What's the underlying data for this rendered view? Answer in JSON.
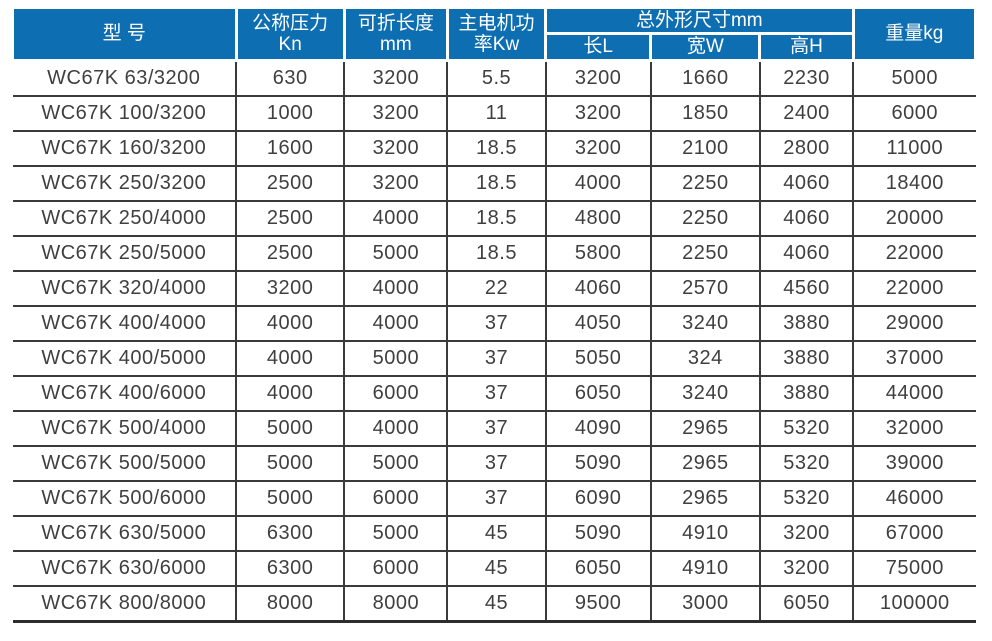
{
  "table": {
    "header": {
      "model": "型 号",
      "pressure": {
        "line1": "公称压力",
        "line2": "Kn"
      },
      "fold_length": {
        "line1": "可折长度",
        "line2": "mm"
      },
      "motor_power": {
        "line1": "主电机功",
        "line2": "率Kw"
      },
      "dimensions_group": "总外形尺寸mm",
      "dim_length": "长L",
      "dim_width": "宽W",
      "dim_height": "高H",
      "weight": "重量kg"
    },
    "rows": [
      [
        "WC67K 63/3200",
        "630",
        "3200",
        "5.5",
        "3200",
        "1660",
        "2230",
        "5000"
      ],
      [
        "WC67K 100/3200",
        "1000",
        "3200",
        "11",
        "3200",
        "1850",
        "2400",
        "6000"
      ],
      [
        "WC67K 160/3200",
        "1600",
        "3200",
        "18.5",
        "3200",
        "2100",
        "2800",
        "11000"
      ],
      [
        "WC67K 250/3200",
        "2500",
        "3200",
        "18.5",
        "4000",
        "2250",
        "4060",
        "18400"
      ],
      [
        "WC67K 250/4000",
        "2500",
        "4000",
        "18.5",
        "4800",
        "2250",
        "4060",
        "20000"
      ],
      [
        "WC67K 250/5000",
        "2500",
        "5000",
        "18.5",
        "5800",
        "2250",
        "4060",
        "22000"
      ],
      [
        "WC67K 320/4000",
        "3200",
        "4000",
        "22",
        "4060",
        "2570",
        "4560",
        "22000"
      ],
      [
        "WC67K 400/4000",
        "4000",
        "4000",
        "37",
        "4050",
        "3240",
        "3880",
        "29000"
      ],
      [
        "WC67K 400/5000",
        "4000",
        "5000",
        "37",
        "5050",
        "324",
        "3880",
        "37000"
      ],
      [
        "WC67K 400/6000",
        "4000",
        "6000",
        "37",
        "6050",
        "3240",
        "3880",
        "44000"
      ],
      [
        "WC67K 500/4000",
        "5000",
        "4000",
        "37",
        "4090",
        "2965",
        "5320",
        "32000"
      ],
      [
        "WC67K 500/5000",
        "5000",
        "5000",
        "37",
        "5090",
        "2965",
        "5320",
        "39000"
      ],
      [
        "WC67K 500/6000",
        "5000",
        "6000",
        "37",
        "6090",
        "2965",
        "5320",
        "46000"
      ],
      [
        "WC67K 630/5000",
        "6300",
        "5000",
        "45",
        "5090",
        "4910",
        "3200",
        "67000"
      ],
      [
        "WC67K 630/6000",
        "6300",
        "6000",
        "45",
        "6050",
        "4910",
        "3200",
        "75000"
      ],
      [
        "WC67K 800/8000",
        "8000",
        "8000",
        "45",
        "9500",
        "3000",
        "6050",
        "100000"
      ]
    ]
  },
  "colors": {
    "header_bg": "#0e6eb2",
    "header_text": "#ffffff",
    "body_text": "#3f3f3f",
    "grid_line": "#3a3a3a"
  }
}
